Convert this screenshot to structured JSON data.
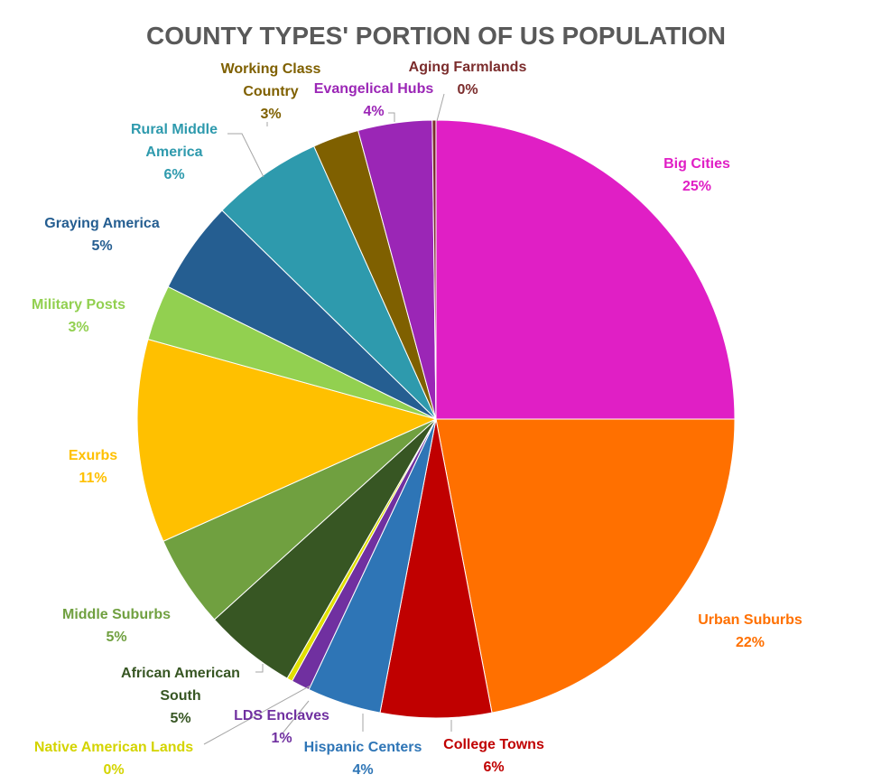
{
  "chart_data": {
    "type": "pie",
    "title": "COUNTY TYPES' PORTION OF US POPULATION",
    "slices": [
      {
        "name": "Big Cities",
        "value": 25,
        "label": "25%",
        "color": "#e01fc5"
      },
      {
        "name": "Urban Suburbs",
        "value": 22,
        "label": "22%",
        "color": "#ff7000"
      },
      {
        "name": "College Towns",
        "value": 6,
        "label": "6%",
        "color": "#c00000"
      },
      {
        "name": "Hispanic Centers",
        "value": 4,
        "label": "4%",
        "color": "#2e75b6"
      },
      {
        "name": "LDS Enclaves",
        "value": 1,
        "label": "1%",
        "color": "#7030a0"
      },
      {
        "name": "Native American Lands",
        "value": 0.3,
        "label": "0%",
        "color": "#e0e000"
      },
      {
        "name": "African American South",
        "value": 5,
        "label": "5%",
        "color": "#375623"
      },
      {
        "name": "Middle Suburbs",
        "value": 5,
        "label": "5%",
        "color": "#70a040"
      },
      {
        "name": "Exurbs",
        "value": 11,
        "label": "11%",
        "color": "#ffc000"
      },
      {
        "name": "Military Posts",
        "value": 3,
        "label": "3%",
        "color": "#92d050"
      },
      {
        "name": "Graying America",
        "value": 5,
        "label": "5%",
        "color": "#255e91"
      },
      {
        "name": "Rural Middle America",
        "value": 6,
        "label": "6%",
        "color": "#2e9aad"
      },
      {
        "name": "Working Class Country",
        "value": 2.5,
        "label": "3%",
        "color": "#7f6000"
      },
      {
        "name": "Evangelical Hubs",
        "value": 4,
        "label": "4%",
        "color": "#9b26b6"
      },
      {
        "name": "Aging Farmlands",
        "value": 0.2,
        "label": "0%",
        "color": "#7b2c2c"
      }
    ]
  }
}
